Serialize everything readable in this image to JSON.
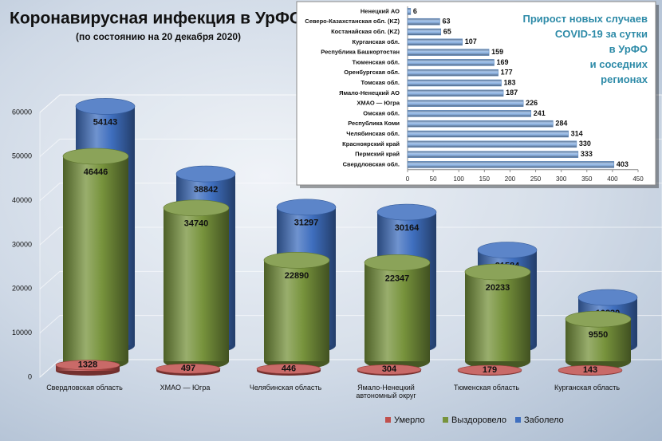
{
  "chart_data": [
    {
      "type": "bar",
      "title": "Коронавирусная инфекция в УрФО",
      "subtitle": "(по состоянию на 20 декабря 2020)",
      "categories": [
        "Свердловская область",
        "ХМАО — Югра",
        "Челябинская область",
        "Ямало-Ненецкий\nавтономный округ",
        "Тюменская область",
        "Курганская область"
      ],
      "series": [
        {
          "name": "Умерло",
          "color": "#c0504d",
          "values": [
            1328,
            497,
            446,
            304,
            179,
            143
          ]
        },
        {
          "name": "Выздоровело",
          "color": "#77933c",
          "values": [
            46446,
            34740,
            22890,
            22347,
            20233,
            9550
          ]
        },
        {
          "name": "Заболело",
          "color": "#3f6fbf",
          "values": [
            54143,
            38842,
            31297,
            30164,
            21584,
            10830
          ]
        }
      ],
      "ylim": [
        0,
        60000
      ],
      "yticks": [
        0,
        10000,
        20000,
        30000,
        40000,
        50000,
        60000
      ],
      "grid": true,
      "legend": "bottom"
    },
    {
      "type": "barh",
      "title": "Прирост новых случаев\nCOVID-19 за сутки\nв УрФО\nи соседних\nрегионах",
      "categories": [
        "Ненецкий АО",
        "Северо-Казахстанская обл. (KZ)",
        "Костанайская обл. (KZ)",
        "Курганская обл.",
        "Республика Башкортостан",
        "Тюменская обл.",
        "Оренбургская обл.",
        "Томская обл.",
        "Ямало-Ненецкий АО",
        "ХМАО — Югра",
        "Омская обл.",
        "Республика Коми",
        "Челябинская обл.",
        "Красноярский край",
        "Пермский край",
        "Свердловская обл."
      ],
      "values": [
        6,
        63,
        65,
        107,
        159,
        169,
        177,
        183,
        187,
        226,
        241,
        284,
        314,
        330,
        333,
        403
      ],
      "color": "#8db3e2",
      "xlim": [
        0,
        450
      ],
      "xticks": [
        0,
        50,
        100,
        150,
        200,
        250,
        300,
        350,
        400,
        450
      ]
    }
  ]
}
